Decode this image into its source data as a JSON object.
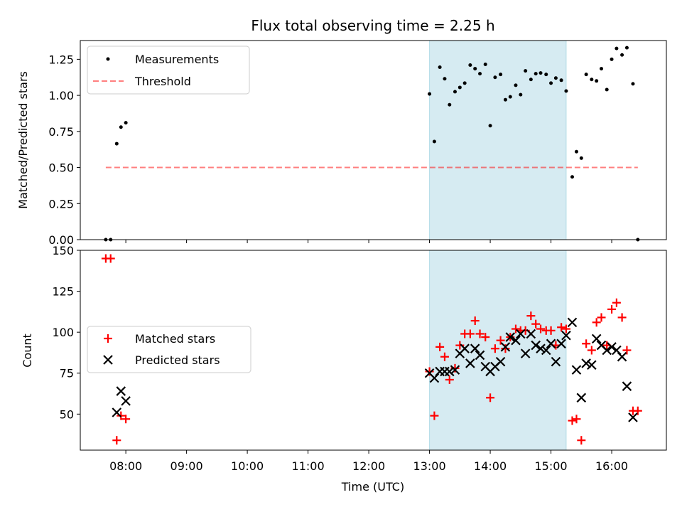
{
  "chart_data": [
    {
      "type": "scatter",
      "title": "Flux total observing time = 2.25 h",
      "xlabel": "",
      "ylabel": "Matched/Predicted stars",
      "xlim": [
        7.25,
        16.9
      ],
      "ylim": [
        0,
        1.38
      ],
      "yticks": [
        0,
        0.25,
        0.5,
        0.75,
        1.0,
        1.25
      ],
      "ytick_labels": [
        "0.00",
        "0.25",
        "0.50",
        "0.75",
        "1.00",
        "1.25"
      ],
      "shaded_region": {
        "x_start": 13.0,
        "x_end": 15.25
      },
      "threshold": {
        "name": "Threshold",
        "value": 0.5,
        "x_start": 7.67,
        "x_end": 16.43
      },
      "legend": [
        "Measurements",
        "Threshold"
      ],
      "series": [
        {
          "name": "Measurements",
          "x": [
            7.67,
            7.75,
            7.85,
            7.92,
            8.0,
            13.0,
            13.08,
            13.17,
            13.25,
            13.33,
            13.42,
            13.5,
            13.58,
            13.67,
            13.75,
            13.83,
            13.92,
            14.0,
            14.08,
            14.17,
            14.25,
            14.33,
            14.42,
            14.5,
            14.58,
            14.67,
            14.75,
            14.83,
            14.92,
            15.0,
            15.08,
            15.17,
            15.25,
            15.35,
            15.42,
            15.5,
            15.58,
            15.67,
            15.75,
            15.83,
            15.92,
            16.0,
            16.08,
            16.17,
            16.25,
            16.35,
            16.43
          ],
          "y": [
            0.0,
            0.0,
            0.665,
            0.78,
            0.81,
            1.01,
            0.68,
            1.195,
            1.115,
            0.935,
            1.025,
            1.055,
            1.085,
            1.21,
            1.185,
            1.15,
            1.215,
            0.79,
            1.125,
            1.145,
            0.97,
            0.99,
            1.07,
            1.005,
            1.17,
            1.11,
            1.15,
            1.155,
            1.145,
            1.085,
            1.12,
            1.105,
            1.03,
            0.435,
            0.61,
            0.565,
            1.145,
            1.11,
            1.1,
            1.185,
            1.04,
            1.25,
            1.325,
            1.28,
            1.33,
            1.08,
            0.0
          ]
        }
      ]
    },
    {
      "type": "scatter",
      "title": "",
      "xlabel": "Time (UTC)",
      "ylabel": "Count",
      "xlim": [
        7.25,
        16.9
      ],
      "ylim": [
        28,
        150
      ],
      "yticks": [
        50,
        75,
        100,
        125,
        150
      ],
      "ytick_labels": [
        "50",
        "75",
        "100",
        "125",
        "150"
      ],
      "xticks": [
        8,
        9,
        10,
        11,
        12,
        13,
        14,
        15,
        16
      ],
      "xtick_labels": [
        "08:00",
        "09:00",
        "10:00",
        "11:00",
        "12:00",
        "13:00",
        "14:00",
        "15:00",
        "16:00"
      ],
      "shaded_region": {
        "x_start": 13.0,
        "x_end": 15.25
      },
      "legend": [
        "Matched stars",
        "Predicted stars"
      ],
      "series": [
        {
          "name": "Matched stars",
          "marker": "+",
          "color": "#ff0000",
          "x": [
            7.67,
            7.75,
            7.85,
            7.92,
            8.0,
            13.0,
            13.08,
            13.17,
            13.25,
            13.33,
            13.42,
            13.5,
            13.58,
            13.67,
            13.75,
            13.83,
            13.92,
            14.0,
            14.08,
            14.17,
            14.25,
            14.33,
            14.42,
            14.5,
            14.58,
            14.67,
            14.75,
            14.83,
            14.92,
            15.0,
            15.08,
            15.17,
            15.25,
            15.35,
            15.42,
            15.5,
            15.58,
            15.67,
            15.75,
            15.83,
            15.92,
            16.0,
            16.08,
            16.17,
            16.25,
            16.35,
            16.43
          ],
          "y": [
            145,
            145,
            34,
            49,
            47,
            76,
            49,
            91,
            85,
            71,
            78,
            92,
            99,
            99,
            107,
            99,
            97,
            60,
            90,
            95,
            90,
            97,
            102,
            101,
            101,
            110,
            105,
            102,
            101,
            101,
            92,
            103,
            102,
            46,
            47,
            34,
            93,
            89,
            106,
            109,
            92,
            114,
            118,
            109,
            89,
            52,
            52
          ]
        },
        {
          "name": "Predicted stars",
          "marker": "x",
          "color": "#000000",
          "x": [
            7.85,
            7.92,
            8.0,
            13.0,
            13.08,
            13.17,
            13.25,
            13.33,
            13.42,
            13.5,
            13.58,
            13.67,
            13.75,
            13.83,
            13.92,
            14.0,
            14.08,
            14.17,
            14.25,
            14.33,
            14.42,
            14.5,
            14.58,
            14.67,
            14.75,
            14.83,
            14.92,
            15.0,
            15.08,
            15.17,
            15.25,
            15.35,
            15.42,
            15.5,
            15.58,
            15.67,
            15.75,
            15.83,
            15.92,
            16.0,
            16.08,
            16.17,
            16.25,
            16.35
          ],
          "y": [
            51,
            64,
            58,
            75,
            72,
            76,
            76,
            76,
            77,
            87,
            90,
            81,
            90,
            86,
            79,
            76,
            79,
            82,
            91,
            97,
            95,
            99,
            87,
            99,
            92,
            90,
            89,
            93,
            82,
            93,
            98,
            106,
            77,
            60,
            81,
            80,
            96,
            92,
            89,
            91,
            89,
            85,
            67,
            48
          ]
        }
      ]
    }
  ]
}
